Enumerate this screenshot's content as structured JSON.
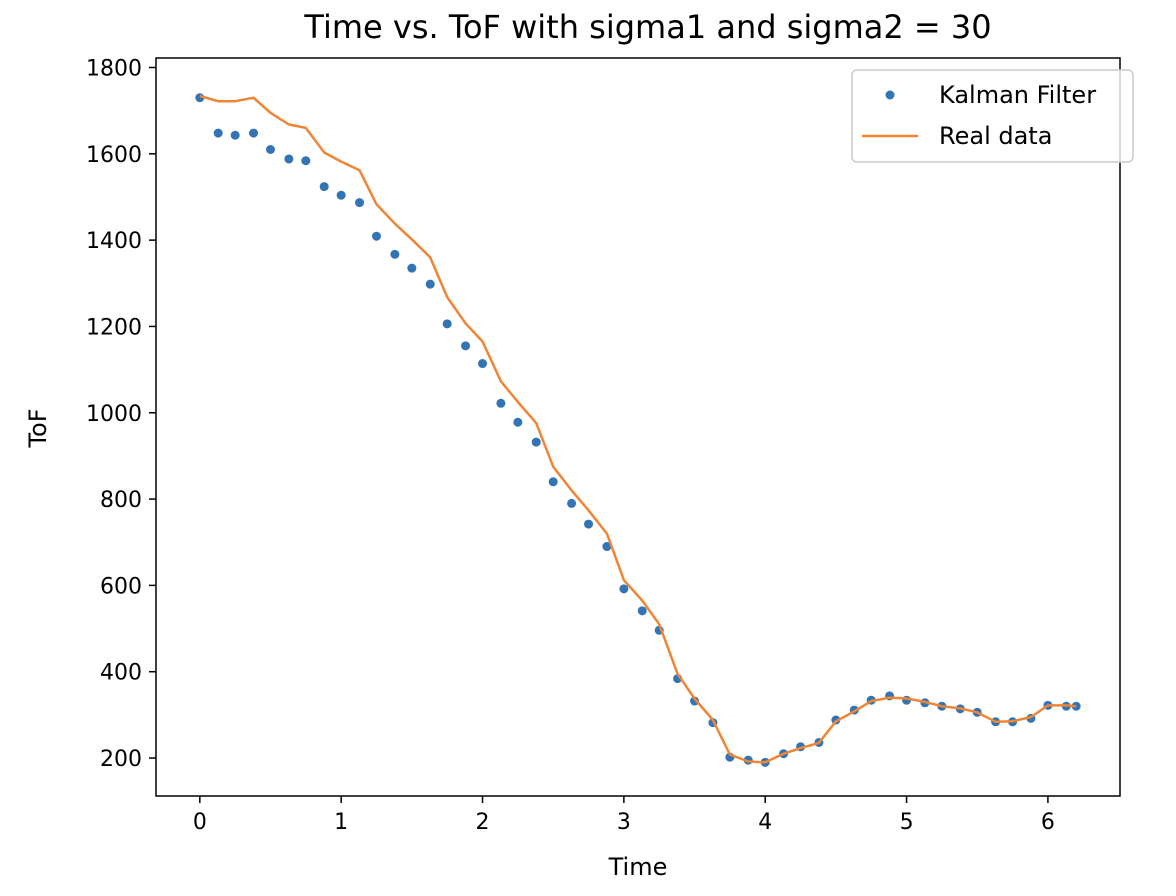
{
  "chart_data": {
    "type": "scatter",
    "title": "Time vs. ToF with sigma1 and sigma2 = 30",
    "xlabel": "Time",
    "ylabel": "ToF",
    "xlim": [
      -0.31,
      6.51
    ],
    "ylim": [
      112,
      1822
    ],
    "x_ticks": [
      0,
      1,
      2,
      3,
      4,
      5,
      6
    ],
    "y_ticks": [
      200,
      400,
      600,
      800,
      1000,
      1200,
      1400,
      1600,
      1800
    ],
    "x_tick_labels": [
      "0",
      "1",
      "2",
      "3",
      "4",
      "5",
      "6"
    ],
    "y_tick_labels": [
      "200",
      "400",
      "600",
      "800",
      "1000",
      "1200",
      "1400",
      "1600",
      "1800"
    ],
    "grid": false,
    "legend_position": "top-right",
    "colors": {
      "kalman": "#3274b4",
      "real": "#f08536"
    },
    "legend": [
      "Kalman Filter",
      "Real data"
    ],
    "series": [
      {
        "name": "Kalman Filter",
        "kind": "scatter",
        "x": [
          0.0,
          0.13,
          0.25,
          0.38,
          0.5,
          0.63,
          0.75,
          0.88,
          1.0,
          1.13,
          1.25,
          1.38,
          1.5,
          1.63,
          1.75,
          1.88,
          2.0,
          2.13,
          2.25,
          2.38,
          2.5,
          2.63,
          2.75,
          2.88,
          3.0,
          3.13,
          3.25,
          3.38,
          3.5,
          3.63,
          3.75,
          3.88,
          4.0,
          4.13,
          4.25,
          4.38,
          4.5,
          4.63,
          4.75,
          4.88,
          5.0,
          5.13,
          5.25,
          5.38,
          5.5,
          5.63,
          5.75,
          5.88,
          6.0,
          6.13,
          6.2
        ],
        "y": [
          1730,
          1648,
          1643,
          1648,
          1610,
          1588,
          1584,
          1524,
          1504,
          1487,
          1409,
          1367,
          1335,
          1298,
          1206,
          1155,
          1114,
          1022,
          978,
          932,
          840,
          790,
          742,
          690,
          592,
          541,
          496,
          384,
          332,
          282,
          202,
          195,
          190,
          210,
          226,
          236,
          288,
          311,
          334,
          344,
          334,
          328,
          320,
          314,
          306,
          284,
          284,
          292,
          322,
          320,
          320
        ]
      },
      {
        "name": "Real data",
        "kind": "line",
        "x": [
          0.0,
          0.13,
          0.25,
          0.38,
          0.5,
          0.63,
          0.75,
          0.88,
          1.0,
          1.13,
          1.25,
          1.38,
          1.5,
          1.63,
          1.75,
          1.88,
          2.0,
          2.13,
          2.25,
          2.38,
          2.5,
          2.63,
          2.75,
          2.88,
          3.0,
          3.13,
          3.25,
          3.38,
          3.5,
          3.63,
          3.75,
          3.88,
          4.0,
          4.13,
          4.25,
          4.38,
          4.5,
          4.63,
          4.75,
          4.88,
          5.0,
          5.13,
          5.25,
          5.38,
          5.5,
          5.63,
          5.75,
          5.88,
          6.0,
          6.13,
          6.2
        ],
        "y": [
          1734,
          1722,
          1722,
          1730,
          1695,
          1668,
          1660,
          1603,
          1582,
          1562,
          1483,
          1438,
          1402,
          1360,
          1268,
          1207,
          1165,
          1073,
          1025,
          976,
          875,
          820,
          774,
          720,
          612,
          565,
          510,
          395,
          338,
          288,
          208,
          192,
          190,
          210,
          223,
          235,
          285,
          308,
          332,
          340,
          338,
          330,
          320,
          315,
          306,
          284,
          285,
          295,
          322,
          322,
          320
        ]
      }
    ]
  }
}
